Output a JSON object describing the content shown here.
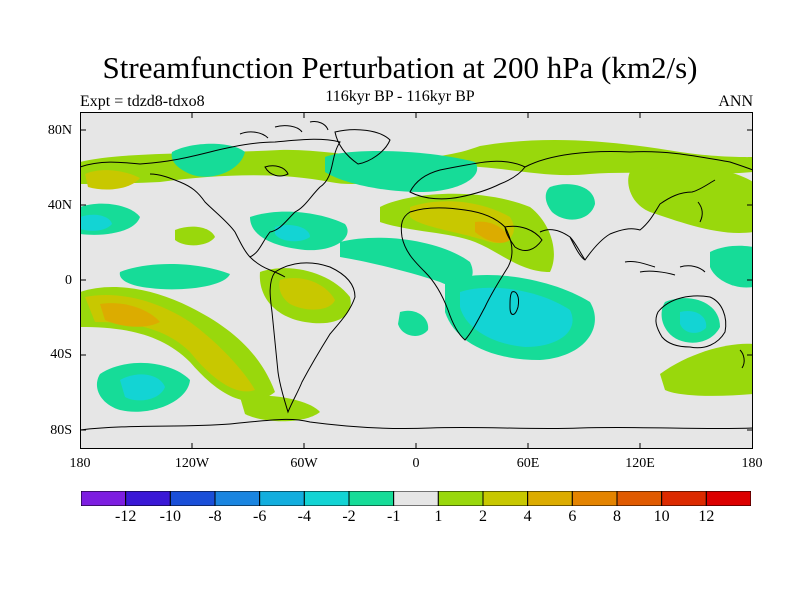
{
  "title": "Streamfunction Perturbation at 200 hPa (km2/s)",
  "subtitle_left": "Expt = tdzd8-tdxo8",
  "subtitle_center": "116kyr BP - 116kyr BP",
  "subtitle_right": "ANN",
  "lat_ticks": [
    "80N",
    "40N",
    "0",
    "40S",
    "80S"
  ],
  "lon_ticks": [
    "180",
    "120W",
    "60W",
    "0",
    "60E",
    "120E",
    "180"
  ],
  "colorbar": {
    "colors": [
      "#7d1ee0",
      "#3a18d6",
      "#1a4fd8",
      "#1a85e0",
      "#13aede",
      "#13d4d4",
      "#16dc98",
      "#e6e6e6",
      "#99d80c",
      "#c8c800",
      "#dcac00",
      "#e48400",
      "#e05a00",
      "#dc2a00",
      "#dc0000"
    ],
    "labels": [
      "-12",
      "-10",
      "-8",
      "-6",
      "-4",
      "-2",
      "-1",
      "1",
      "2",
      "4",
      "6",
      "8",
      "10",
      "12"
    ]
  },
  "colors": {
    "background": "#e6e6e6",
    "coast": "#000000"
  }
}
